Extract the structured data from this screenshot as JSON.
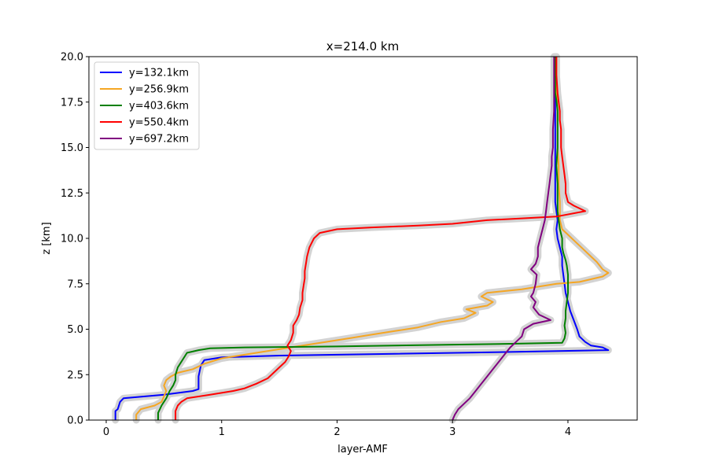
{
  "chart_data": {
    "type": "line",
    "title": "x=214.0 km",
    "xlabel": "layer-AMF",
    "ylabel": "z [km]",
    "xlim": [
      -0.15,
      4.6
    ],
    "ylim": [
      0,
      20
    ],
    "xticks": [
      0,
      1,
      2,
      3,
      4
    ],
    "yticks": [
      0.0,
      2.5,
      5.0,
      7.5,
      10.0,
      12.5,
      15.0,
      17.5,
      20.0
    ],
    "ytick_labels": [
      "0.0",
      "2.5",
      "5.0",
      "7.5",
      "10.0",
      "12.5",
      "15.0",
      "17.5",
      "20.0"
    ],
    "legend_location": "upper-left",
    "uncertainty_band_color": "#d3d3d3",
    "series": [
      {
        "name": "y=132.1km",
        "color": "#0000ff",
        "points": [
          [
            0.08,
            0
          ],
          [
            0.08,
            0.5
          ],
          [
            0.1,
            0.6
          ],
          [
            0.12,
            1.0
          ],
          [
            0.15,
            1.2
          ],
          [
            0.5,
            1.4
          ],
          [
            0.75,
            1.6
          ],
          [
            0.8,
            1.7
          ],
          [
            0.8,
            2.4
          ],
          [
            0.82,
            3.0
          ],
          [
            0.85,
            3.3
          ],
          [
            1.0,
            3.45
          ],
          [
            1.5,
            3.55
          ],
          [
            2.5,
            3.65
          ],
          [
            3.5,
            3.75
          ],
          [
            4.35,
            3.85
          ],
          [
            4.3,
            4.0
          ],
          [
            4.2,
            4.1
          ],
          [
            4.15,
            4.3
          ],
          [
            4.1,
            4.6
          ],
          [
            4.08,
            5.0
          ],
          [
            4.05,
            5.5
          ],
          [
            4.02,
            6.0
          ],
          [
            4.0,
            6.5
          ],
          [
            3.98,
            7.0
          ],
          [
            3.97,
            7.5
          ],
          [
            3.96,
            8.0
          ],
          [
            3.95,
            8.5
          ],
          [
            3.95,
            9.0
          ],
          [
            3.93,
            9.5
          ],
          [
            3.91,
            10.0
          ],
          [
            3.9,
            10.5
          ],
          [
            3.91,
            11.0
          ],
          [
            3.9,
            11.5
          ],
          [
            3.89,
            12.0
          ],
          [
            3.89,
            13.0
          ],
          [
            3.89,
            14.0
          ],
          [
            3.89,
            15.0
          ],
          [
            3.89,
            16.0
          ],
          [
            3.89,
            17.0
          ],
          [
            3.89,
            18.0
          ],
          [
            3.89,
            19.0
          ],
          [
            3.89,
            20.0
          ]
        ]
      },
      {
        "name": "y=256.9km",
        "color": "#f5a623",
        "points": [
          [
            0.26,
            0
          ],
          [
            0.26,
            0.3
          ],
          [
            0.3,
            0.6
          ],
          [
            0.42,
            0.8
          ],
          [
            0.48,
            1.0
          ],
          [
            0.5,
            1.3
          ],
          [
            0.52,
            1.6
          ],
          [
            0.5,
            1.9
          ],
          [
            0.52,
            2.2
          ],
          [
            0.56,
            2.4
          ],
          [
            0.62,
            2.6
          ],
          [
            0.75,
            2.8
          ],
          [
            0.85,
            3.1
          ],
          [
            1.0,
            3.4
          ],
          [
            1.3,
            3.7
          ],
          [
            1.5,
            3.9
          ],
          [
            1.7,
            4.1
          ],
          [
            1.9,
            4.3
          ],
          [
            2.1,
            4.5
          ],
          [
            2.3,
            4.7
          ],
          [
            2.5,
            4.9
          ],
          [
            2.7,
            5.1
          ],
          [
            2.9,
            5.4
          ],
          [
            3.1,
            5.6
          ],
          [
            3.2,
            5.9
          ],
          [
            3.12,
            6.1
          ],
          [
            3.3,
            6.3
          ],
          [
            3.35,
            6.5
          ],
          [
            3.25,
            6.8
          ],
          [
            3.3,
            7.0
          ],
          [
            3.6,
            7.2
          ],
          [
            3.9,
            7.5
          ],
          [
            4.1,
            7.6
          ],
          [
            4.3,
            7.9
          ],
          [
            4.35,
            8.1
          ],
          [
            4.3,
            8.3
          ],
          [
            4.25,
            8.7
          ],
          [
            4.2,
            9.0
          ],
          [
            4.15,
            9.3
          ],
          [
            4.1,
            9.6
          ],
          [
            4.05,
            9.9
          ],
          [
            4.0,
            10.2
          ],
          [
            3.95,
            10.5
          ],
          [
            3.93,
            11.0
          ],
          [
            3.93,
            11.5
          ],
          [
            3.93,
            12.0
          ],
          [
            3.92,
            13.0
          ],
          [
            3.92,
            14.0
          ],
          [
            3.91,
            15.0
          ],
          [
            3.91,
            16.0
          ],
          [
            3.91,
            17.0
          ],
          [
            3.9,
            18.0
          ],
          [
            3.9,
            19.0
          ],
          [
            3.9,
            20.0
          ]
        ]
      },
      {
        "name": "y=403.6km",
        "color": "#008000",
        "points": [
          [
            0.45,
            0
          ],
          [
            0.45,
            0.4
          ],
          [
            0.48,
            0.8
          ],
          [
            0.52,
            1.2
          ],
          [
            0.55,
            1.6
          ],
          [
            0.58,
            1.9
          ],
          [
            0.6,
            2.2
          ],
          [
            0.6,
            2.5
          ],
          [
            0.62,
            2.9
          ],
          [
            0.65,
            3.2
          ],
          [
            0.68,
            3.5
          ],
          [
            0.7,
            3.7
          ],
          [
            0.8,
            3.85
          ],
          [
            0.9,
            3.95
          ],
          [
            1.2,
            4.0
          ],
          [
            2.0,
            4.05
          ],
          [
            3.0,
            4.15
          ],
          [
            3.5,
            4.2
          ],
          [
            3.95,
            4.25
          ],
          [
            3.97,
            4.5
          ],
          [
            3.98,
            4.8
          ],
          [
            3.97,
            5.2
          ],
          [
            3.98,
            5.6
          ],
          [
            3.98,
            6.0
          ],
          [
            3.99,
            6.5
          ],
          [
            4.0,
            7.0
          ],
          [
            4.0,
            7.5
          ],
          [
            4.0,
            8.0
          ],
          [
            3.99,
            8.5
          ],
          [
            3.98,
            8.8
          ],
          [
            3.96,
            9.2
          ],
          [
            3.95,
            9.5
          ],
          [
            3.95,
            10.0
          ],
          [
            3.93,
            10.5
          ],
          [
            3.92,
            11.0
          ],
          [
            3.91,
            11.5
          ],
          [
            3.91,
            12.0
          ],
          [
            3.91,
            13.0
          ],
          [
            3.9,
            14.0
          ],
          [
            3.91,
            15.0
          ],
          [
            3.91,
            16.0
          ],
          [
            3.91,
            17.0
          ],
          [
            3.9,
            17.6
          ],
          [
            3.89,
            18.0
          ],
          [
            3.89,
            19.0
          ],
          [
            3.89,
            20.0
          ]
        ]
      },
      {
        "name": "y=550.4km",
        "color": "#ff0000",
        "points": [
          [
            0.6,
            0
          ],
          [
            0.6,
            0.5
          ],
          [
            0.62,
            0.8
          ],
          [
            0.65,
            1.0
          ],
          [
            0.7,
            1.2
          ],
          [
            0.8,
            1.3
          ],
          [
            0.9,
            1.4
          ],
          [
            1.0,
            1.5
          ],
          [
            1.1,
            1.6
          ],
          [
            1.2,
            1.75
          ],
          [
            1.3,
            2.0
          ],
          [
            1.4,
            2.3
          ],
          [
            1.45,
            2.6
          ],
          [
            1.5,
            2.9
          ],
          [
            1.55,
            3.2
          ],
          [
            1.58,
            3.5
          ],
          [
            1.6,
            3.8
          ],
          [
            1.57,
            4.1
          ],
          [
            1.6,
            4.4
          ],
          [
            1.62,
            4.8
          ],
          [
            1.62,
            5.2
          ],
          [
            1.65,
            5.5
          ],
          [
            1.67,
            5.8
          ],
          [
            1.68,
            6.2
          ],
          [
            1.7,
            6.6
          ],
          [
            1.7,
            7.0
          ],
          [
            1.71,
            7.4
          ],
          [
            1.72,
            7.8
          ],
          [
            1.72,
            8.2
          ],
          [
            1.73,
            8.6
          ],
          [
            1.74,
            9.0
          ],
          [
            1.76,
            9.5
          ],
          [
            1.8,
            10.0
          ],
          [
            1.85,
            10.3
          ],
          [
            2.0,
            10.5
          ],
          [
            2.3,
            10.6
          ],
          [
            2.7,
            10.7
          ],
          [
            3.0,
            10.8
          ],
          [
            3.3,
            11.0
          ],
          [
            3.6,
            11.1
          ],
          [
            3.9,
            11.2
          ],
          [
            4.15,
            11.5
          ],
          [
            4.05,
            11.8
          ],
          [
            4.0,
            12.0
          ],
          [
            3.98,
            12.5
          ],
          [
            3.98,
            13.0
          ],
          [
            3.97,
            13.5
          ],
          [
            3.96,
            14.0
          ],
          [
            3.95,
            14.5
          ],
          [
            3.94,
            15.0
          ],
          [
            3.94,
            15.5
          ],
          [
            3.94,
            16.0
          ],
          [
            3.93,
            16.5
          ],
          [
            3.93,
            17.0
          ],
          [
            3.92,
            17.5
          ],
          [
            3.91,
            18.0
          ],
          [
            3.9,
            19.0
          ],
          [
            3.9,
            20.0
          ]
        ]
      },
      {
        "name": "y=697.2km",
        "color": "#800080",
        "points": [
          [
            3.0,
            0
          ],
          [
            3.02,
            0.3
          ],
          [
            3.05,
            0.6
          ],
          [
            3.1,
            0.9
          ],
          [
            3.15,
            1.2
          ],
          [
            3.2,
            1.6
          ],
          [
            3.25,
            2.0
          ],
          [
            3.3,
            2.4
          ],
          [
            3.35,
            2.8
          ],
          [
            3.4,
            3.2
          ],
          [
            3.45,
            3.6
          ],
          [
            3.5,
            4.0
          ],
          [
            3.55,
            4.3
          ],
          [
            3.6,
            4.6
          ],
          [
            3.62,
            5.0
          ],
          [
            3.7,
            5.3
          ],
          [
            3.85,
            5.5
          ],
          [
            3.75,
            5.8
          ],
          [
            3.7,
            6.2
          ],
          [
            3.72,
            6.5
          ],
          [
            3.68,
            6.8
          ],
          [
            3.7,
            7.0
          ],
          [
            3.72,
            7.5
          ],
          [
            3.73,
            8.0
          ],
          [
            3.68,
            8.3
          ],
          [
            3.72,
            8.6
          ],
          [
            3.74,
            9.0
          ],
          [
            3.74,
            9.5
          ],
          [
            3.76,
            10.0
          ],
          [
            3.78,
            10.5
          ],
          [
            3.8,
            11.0
          ],
          [
            3.81,
            11.5
          ],
          [
            3.82,
            12.0
          ],
          [
            3.83,
            12.5
          ],
          [
            3.84,
            13.0
          ],
          [
            3.85,
            13.5
          ],
          [
            3.86,
            14.0
          ],
          [
            3.86,
            14.5
          ],
          [
            3.87,
            15.0
          ],
          [
            3.87,
            16.0
          ],
          [
            3.88,
            17.0
          ],
          [
            3.88,
            18.0
          ],
          [
            3.88,
            19.0
          ],
          [
            3.88,
            20.0
          ]
        ]
      }
    ]
  }
}
